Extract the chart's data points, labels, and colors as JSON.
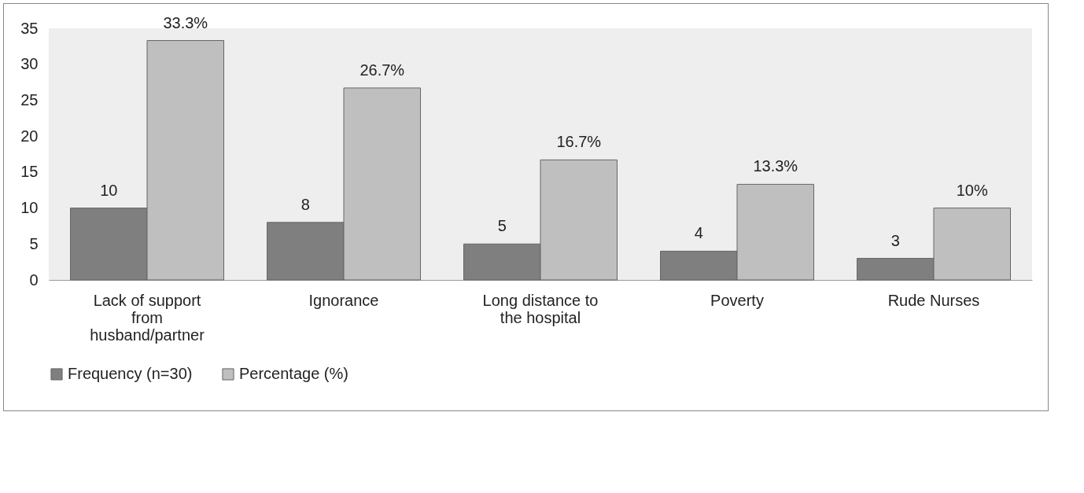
{
  "chart_data": {
    "type": "bar",
    "categories": [
      "Lack of support from husband/partner",
      "Ignorance",
      "Long distance to the hospital",
      "Poverty",
      "Rude Nurses"
    ],
    "series": [
      {
        "name": "Frequency  (n=30)",
        "color": "#7f7f7f",
        "values": [
          10,
          8,
          5,
          4,
          3
        ],
        "value_labels": [
          "10",
          "8",
          "5",
          "4",
          "3"
        ]
      },
      {
        "name": "Percentage (%)",
        "color": "#bfbfbf",
        "values": [
          33.3,
          26.7,
          16.7,
          13.3,
          10
        ],
        "value_labels": [
          "33.3%",
          "26.7%",
          "16.7%",
          "13.3%",
          "10%"
        ]
      }
    ],
    "ylim": [
      0,
      35
    ],
    "yticks": [
      0,
      5,
      10,
      15,
      20,
      25,
      30,
      35
    ],
    "grid": false,
    "legend": "bottom"
  }
}
